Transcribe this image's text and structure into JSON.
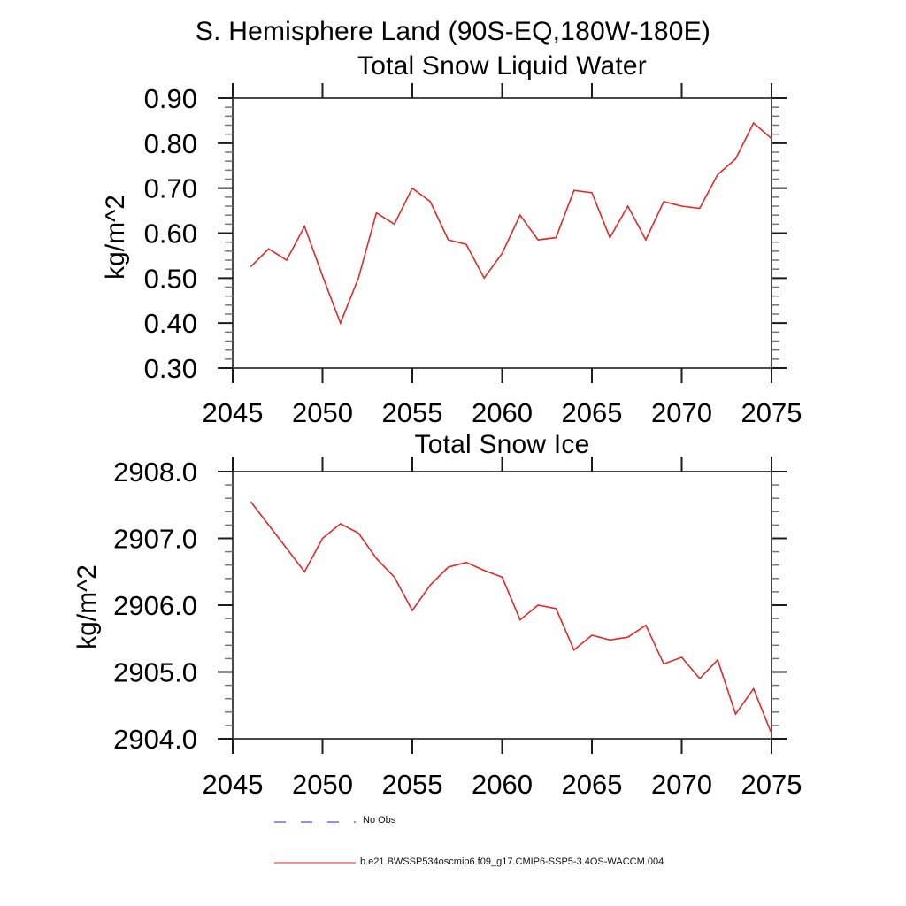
{
  "header": {
    "title": "S. Hemisphere Land (90S-EQ,180W-180E)"
  },
  "chart_data": [
    {
      "type": "line",
      "title": "Total Snow Liquid Water",
      "xlabel": "",
      "ylabel": "kg/m^2",
      "xlim": [
        2045,
        2075
      ],
      "ylim": [
        0.3,
        0.9
      ],
      "grid": false,
      "x_ticks": {
        "values": [
          2045,
          2050,
          2055,
          2060,
          2065,
          2070,
          2075
        ],
        "labels": [
          "2045",
          "2050",
          "2055",
          "2060",
          "2065",
          "2070",
          "2075"
        ]
      },
      "y_ticks": {
        "values": [
          0.3,
          0.4,
          0.5,
          0.6,
          0.7,
          0.8,
          0.9
        ],
        "labels": [
          "0.30",
          "0.40",
          "0.50",
          "0.60",
          "0.70",
          "0.80",
          "0.90"
        ]
      },
      "y_minor_step": 0.02,
      "series": [
        {
          "name": "b.e21.BWSSP534oscmip6.f09_g17.CMIP6-SSP5-3.4OS-WACCM.004",
          "color": "#e12929",
          "x": [
            2046,
            2047,
            2048,
            2049,
            2050,
            2051,
            2052,
            2053,
            2054,
            2055,
            2056,
            2057,
            2058,
            2059,
            2060,
            2061,
            2062,
            2063,
            2064,
            2065,
            2066,
            2067,
            2068,
            2069,
            2070,
            2071,
            2072,
            2073,
            2074,
            2075
          ],
          "y": [
            0.525,
            0.565,
            0.54,
            0.615,
            0.505,
            0.4,
            0.5,
            0.645,
            0.62,
            0.7,
            0.67,
            0.585,
            0.575,
            0.5,
            0.555,
            0.64,
            0.585,
            0.59,
            0.695,
            0.69,
            0.59,
            0.66,
            0.585,
            0.67,
            0.66,
            0.655,
            0.73,
            0.765,
            0.845,
            0.81
          ]
        }
      ]
    },
    {
      "type": "line",
      "title": "Total Snow Ice",
      "xlabel": "",
      "ylabel": "kg/m^2",
      "xlim": [
        2045,
        2075
      ],
      "ylim": [
        2904.0,
        2908.0
      ],
      "grid": false,
      "x_ticks": {
        "values": [
          2045,
          2050,
          2055,
          2060,
          2065,
          2070,
          2075
        ],
        "labels": [
          "2045",
          "2050",
          "2055",
          "2060",
          "2065",
          "2070",
          "2075"
        ]
      },
      "y_ticks": {
        "values": [
          2904.0,
          2905.0,
          2906.0,
          2907.0,
          2908.0
        ],
        "labels": [
          "2904.0",
          "2905.0",
          "2906.0",
          "2907.0",
          "2908.0"
        ]
      },
      "y_minor_step": 0.2,
      "series": [
        {
          "name": "b.e21.BWSSP534oscmip6.f09_g17.CMIP6-SSP5-3.4OS-WACCM.004",
          "color": "#e12929",
          "x": [
            2046,
            2047,
            2048,
            2049,
            2050,
            2051,
            2052,
            2053,
            2054,
            2055,
            2056,
            2057,
            2058,
            2059,
            2060,
            2061,
            2062,
            2063,
            2064,
            2065,
            2066,
            2067,
            2068,
            2069,
            2070,
            2071,
            2072,
            2073,
            2074,
            2075
          ],
          "y": [
            2907.55,
            2907.2,
            2906.85,
            2906.5,
            2907.0,
            2907.22,
            2907.08,
            2906.7,
            2906.42,
            2905.92,
            2906.3,
            2906.57,
            2906.64,
            2906.52,
            2906.42,
            2905.78,
            2906.0,
            2905.95,
            2905.33,
            2905.55,
            2905.48,
            2905.52,
            2905.7,
            2905.12,
            2905.22,
            2904.9,
            2905.18,
            2904.37,
            2904.75,
            2904.08
          ]
        }
      ]
    }
  ],
  "legend": {
    "items": [
      {
        "label": "No Obs",
        "color": "#6f6fd8",
        "line_style": "dashed"
      },
      {
        "label": "b.e21.BWSSP534oscmip6.f09_g17.CMIP6-SSP5-3.4OS-WACCM.004",
        "color": "#e12929",
        "line_style": "solid"
      }
    ]
  },
  "colors": {
    "series_red": "#e12929",
    "no_obs_blue": "#6f6fd8",
    "axis_box": "#4a4a4a",
    "major_tick": "#1c1c1c",
    "minor_tick": "#757575"
  }
}
